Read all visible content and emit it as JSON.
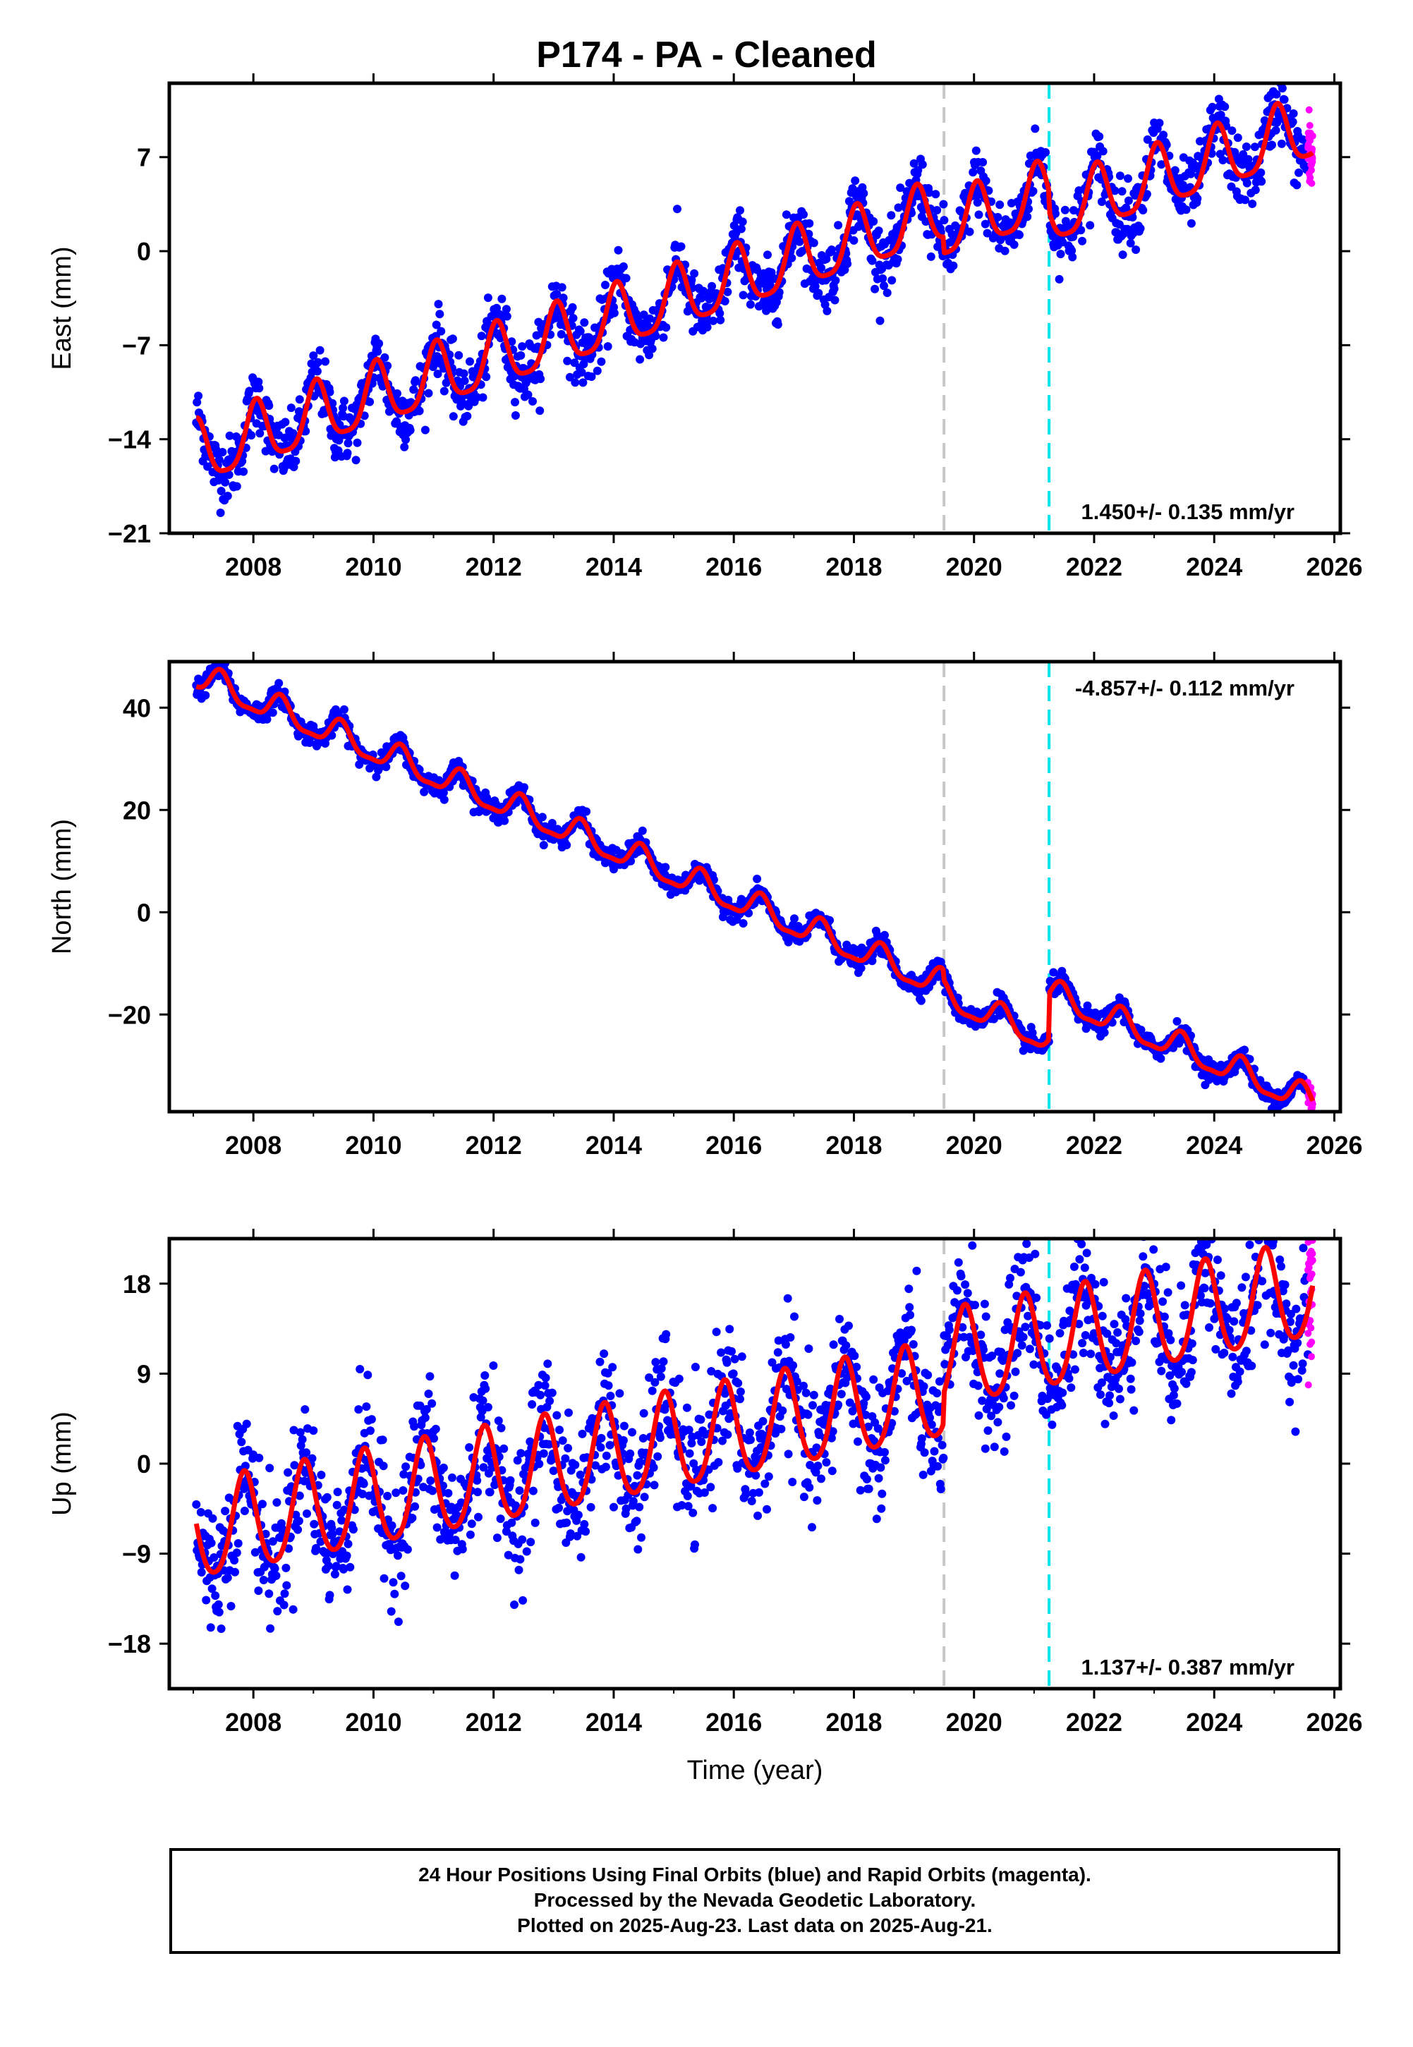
{
  "title": "P174  - PA - Cleaned",
  "footer": {
    "lines": [
      "24 Hour Positions Using Final Orbits (blue) and Rapid Orbits (magenta).",
      "Processed by the Nevada Geodetic Laboratory.",
      "Plotted on 2025-Aug-23. Last data on 2025-Aug-21."
    ]
  },
  "colors": {
    "final_orbits": "#0000ff",
    "rapid_orbits": "#ff00ff",
    "model_fit": "#ff0000",
    "equipment_change": "#c8c8c8",
    "other_event": "#00e5ee"
  },
  "chart_data": [
    {
      "type": "scatter",
      "panel": "east",
      "ylabel": "East (mm)",
      "xlabel": "",
      "xlim": [
        2006.6,
        2026.1
      ],
      "ylim": [
        -21,
        12.5
      ],
      "yticks": [
        -21,
        -14,
        -7,
        0,
        7
      ],
      "xticks": [
        2008,
        2010,
        2012,
        2014,
        2016,
        2018,
        2020,
        2022,
        2024,
        2026
      ],
      "velocity_label": "1.450+/- 0.135 mm/yr",
      "velocity_position": "bottom-right",
      "event_lines": [
        {
          "x": 2019.5,
          "kind": "equipment_change"
        },
        {
          "x": 2021.25,
          "kind": "other_event"
        }
      ],
      "data_start": 2007.05,
      "data_end": 2025.64,
      "rapid_start": 2025.56,
      "model": {
        "t0": 2007.05,
        "offset": -15.2,
        "rate": 1.45,
        "annual_amp": 2.3,
        "annual_phase_peak": 0.05,
        "semiannual_amp": 0.5,
        "steps": [
          {
            "x": 2019.5,
            "dy": -1.2
          },
          {
            "x": 2021.25,
            "dy": -1.5
          }
        ],
        "scatter_sd": 1.2
      }
    },
    {
      "type": "scatter",
      "panel": "north",
      "ylabel": "North (mm)",
      "xlabel": "",
      "xlim": [
        2006.6,
        2026.1
      ],
      "ylim": [
        -39,
        49
      ],
      "yticks": [
        -20,
        0,
        20,
        40
      ],
      "xticks": [
        2008,
        2010,
        2012,
        2014,
        2016,
        2018,
        2020,
        2022,
        2024,
        2026
      ],
      "velocity_label": "-4.857+/- 0.112 mm/yr",
      "velocity_position": "top-right",
      "event_lines": [
        {
          "x": 2019.5,
          "kind": "equipment_change"
        },
        {
          "x": 2021.25,
          "kind": "other_event"
        }
      ],
      "data_start": 2007.05,
      "data_end": 2025.64,
      "rapid_start": 2025.56,
      "model": {
        "t0": 2007.05,
        "offset": 46.0,
        "rate": -4.857,
        "annual_amp": 2.6,
        "annual_phase_peak": 0.45,
        "semiannual_amp": 0.8,
        "steps": [
          {
            "x": 2019.5,
            "dy": -2.0
          },
          {
            "x": 2021.25,
            "dy": 9.0
          }
        ],
        "scatter_sd": 1.0
      }
    },
    {
      "type": "scatter",
      "panel": "up",
      "ylabel": "Up (mm)",
      "xlabel": "Time (year)",
      "xlim": [
        2006.6,
        2026.1
      ],
      "ylim": [
        -22.5,
        22.5
      ],
      "yticks": [
        -18,
        -9,
        0,
        9,
        18
      ],
      "xticks": [
        2008,
        2010,
        2012,
        2014,
        2016,
        2018,
        2020,
        2022,
        2024,
        2026
      ],
      "velocity_label": "1.137+/- 0.387 mm/yr",
      "velocity_position": "bottom-right",
      "event_lines": [
        {
          "x": 2019.5,
          "kind": "equipment_change"
        },
        {
          "x": 2021.25,
          "kind": "other_event"
        }
      ],
      "data_start": 2007.05,
      "data_end": 2025.64,
      "rapid_start": 2025.56,
      "model": {
        "t0": 2007.05,
        "offset": -7.0,
        "rate": 1.137,
        "annual_amp": 4.8,
        "annual_phase_peak": 0.85,
        "semiannual_amp": 0.6,
        "steps": [
          {
            "x": 2019.5,
            "dy": 3.0
          },
          {
            "x": 2021.25,
            "dy": 0.0
          }
        ],
        "scatter_sd": 3.2
      }
    }
  ]
}
